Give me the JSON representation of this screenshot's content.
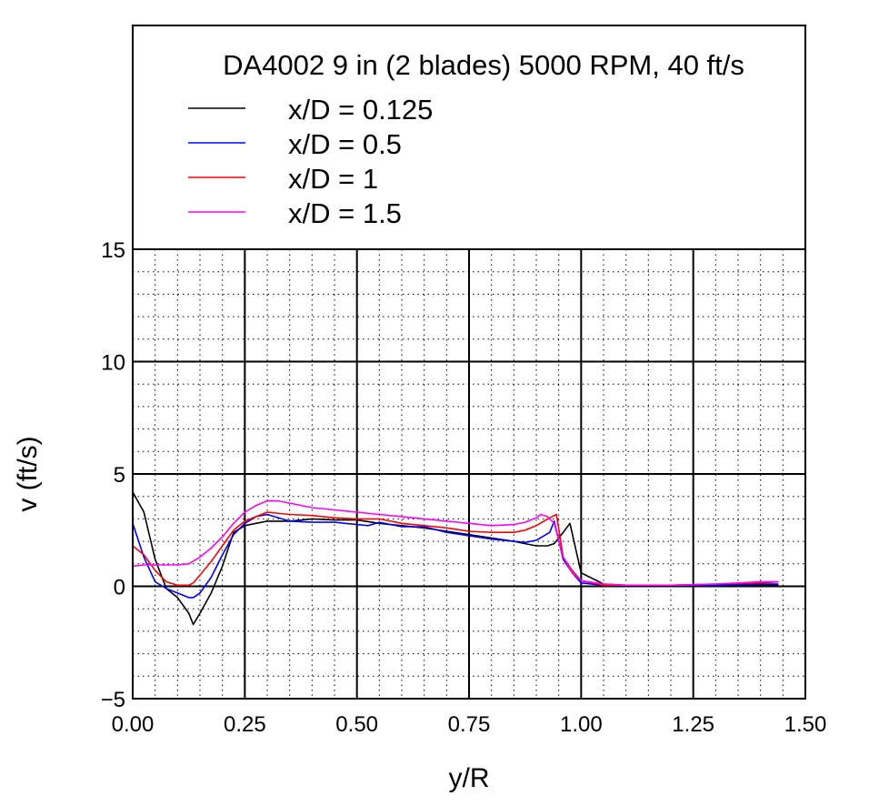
{
  "chart_data": {
    "type": "line",
    "title": "DA4002 9 in (2 blades) 5000 RPM, 40 ft/s",
    "xlabel": "y/R",
    "ylabel": "v (ft/s)",
    "xlim": [
      0,
      1.5
    ],
    "ylim": [
      -5,
      15
    ],
    "xticks": [
      "0.00",
      "0.25",
      "0.50",
      "0.75",
      "1.00",
      "1.25",
      "1.50"
    ],
    "yticks": [
      "−5",
      "0",
      "5",
      "10",
      "15"
    ],
    "grid": "major solid, minor dotted",
    "legend_position": "top (above plot area)",
    "series": [
      {
        "name": "x/D = 0.125",
        "color": "#000000",
        "x": [
          0.0,
          0.025,
          0.05,
          0.075,
          0.1,
          0.125,
          0.135,
          0.15,
          0.175,
          0.2,
          0.225,
          0.25,
          0.275,
          0.3,
          0.35,
          0.4,
          0.45,
          0.5,
          0.55,
          0.6,
          0.65,
          0.7,
          0.75,
          0.8,
          0.85,
          0.875,
          0.9,
          0.925,
          0.94,
          0.96,
          0.975,
          1.0,
          1.05,
          1.1,
          1.2,
          1.3,
          1.4,
          1.44
        ],
        "y": [
          4.2,
          3.3,
          1.2,
          -0.1,
          -0.5,
          -1.2,
          -1.7,
          -1.2,
          -0.3,
          0.9,
          2.4,
          2.7,
          2.8,
          2.9,
          2.9,
          3.0,
          2.95,
          2.95,
          2.8,
          2.7,
          2.6,
          2.45,
          2.3,
          2.15,
          2.0,
          1.9,
          1.8,
          1.8,
          1.9,
          2.4,
          2.8,
          0.6,
          0.1,
          0.05,
          0.05,
          0.05,
          0.05,
          0.05
        ]
      },
      {
        "name": "x/D = 0.5",
        "color": "#0000ff",
        "x": [
          0.0,
          0.025,
          0.05,
          0.075,
          0.1,
          0.125,
          0.135,
          0.15,
          0.175,
          0.2,
          0.225,
          0.25,
          0.275,
          0.3,
          0.35,
          0.4,
          0.45,
          0.5,
          0.525,
          0.55,
          0.6,
          0.65,
          0.7,
          0.75,
          0.8,
          0.85,
          0.875,
          0.9,
          0.93,
          0.94,
          0.96,
          0.98,
          1.0,
          1.05,
          1.1,
          1.2,
          1.3,
          1.4,
          1.44
        ],
        "y": [
          2.8,
          1.3,
          0.2,
          -0.1,
          -0.3,
          -0.5,
          -0.5,
          -0.3,
          0.4,
          1.4,
          2.3,
          2.8,
          3.1,
          3.2,
          2.9,
          2.85,
          2.85,
          2.75,
          2.7,
          2.85,
          2.65,
          2.65,
          2.4,
          2.25,
          2.1,
          2.0,
          1.95,
          2.05,
          2.4,
          2.9,
          1.2,
          0.6,
          0.15,
          0.05,
          0.05,
          0.05,
          0.05,
          0.1,
          0.1
        ]
      },
      {
        "name": "x/D = 1",
        "color": "#ff0000",
        "x": [
          0.0,
          0.025,
          0.05,
          0.075,
          0.1,
          0.125,
          0.135,
          0.15,
          0.175,
          0.2,
          0.225,
          0.25,
          0.275,
          0.3,
          0.35,
          0.4,
          0.45,
          0.5,
          0.55,
          0.6,
          0.65,
          0.7,
          0.75,
          0.8,
          0.85,
          0.875,
          0.9,
          0.93,
          0.945,
          0.96,
          0.98,
          1.0,
          1.05,
          1.1,
          1.2,
          1.3,
          1.4,
          1.44
        ],
        "y": [
          1.8,
          1.4,
          0.7,
          0.2,
          0.05,
          0.05,
          0.15,
          0.5,
          1.1,
          1.8,
          2.5,
          2.9,
          3.1,
          3.3,
          3.2,
          3.15,
          3.05,
          3.0,
          3.0,
          2.8,
          2.7,
          2.6,
          2.45,
          2.4,
          2.4,
          2.5,
          2.7,
          3.05,
          3.2,
          1.3,
          0.7,
          0.25,
          0.05,
          0.05,
          0.05,
          0.1,
          0.15,
          0.2
        ]
      },
      {
        "name": "x/D = 1.5",
        "color": "#ff00ff",
        "x": [
          0.0,
          0.025,
          0.05,
          0.075,
          0.1,
          0.125,
          0.15,
          0.175,
          0.2,
          0.225,
          0.25,
          0.275,
          0.3,
          0.325,
          0.35,
          0.4,
          0.45,
          0.5,
          0.55,
          0.6,
          0.65,
          0.7,
          0.75,
          0.8,
          0.85,
          0.875,
          0.9,
          0.91,
          0.925,
          0.94,
          0.96,
          0.98,
          1.0,
          1.05,
          1.1,
          1.2,
          1.3,
          1.4,
          1.44
        ],
        "y": [
          0.9,
          0.95,
          0.95,
          0.95,
          0.95,
          1.0,
          1.3,
          1.7,
          2.2,
          2.8,
          3.3,
          3.6,
          3.8,
          3.8,
          3.7,
          3.5,
          3.4,
          3.3,
          3.2,
          3.1,
          3.0,
          2.9,
          2.8,
          2.7,
          2.75,
          2.85,
          3.05,
          3.2,
          3.1,
          2.8,
          1.3,
          0.6,
          0.25,
          0.1,
          0.05,
          0.05,
          0.1,
          0.2,
          0.2
        ]
      }
    ]
  }
}
